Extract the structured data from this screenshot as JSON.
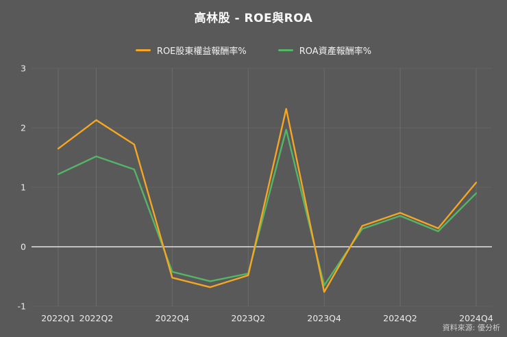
{
  "header": {
    "title": "高林股 - ROE與ROA"
  },
  "legend": [
    {
      "label": "ROE股東權益報酬率%",
      "color": "#f5a623"
    },
    {
      "label": "ROA資產報酬率%",
      "color": "#55b567"
    }
  ],
  "footer": {
    "source": "資料來源: 優分析"
  },
  "chart_data": {
    "type": "line",
    "title": "高林股 - ROE與ROA",
    "categories": [
      "2022Q1",
      "2022Q2",
      "2022Q3",
      "2022Q4",
      "2023Q1",
      "2023Q2",
      "2023Q3",
      "2023Q4",
      "2024Q1",
      "2024Q2",
      "2024Q3",
      "2024Q4"
    ],
    "x_tick_indices": [
      0,
      1,
      3,
      5,
      7,
      9,
      11
    ],
    "x_tick_labels": [
      "2022Q1",
      "2022Q2",
      "2022Q4",
      "2023Q2",
      "2023Q4",
      "2024Q2",
      "2024Q4"
    ],
    "series": [
      {
        "name": "ROE股東權益報酬率%",
        "color": "#f5a623",
        "values": [
          1.65,
          2.13,
          1.72,
          -0.52,
          -0.68,
          -0.48,
          2.32,
          -0.76,
          0.35,
          0.57,
          0.31,
          1.08
        ]
      },
      {
        "name": "ROA資產報酬率%",
        "color": "#55b567",
        "values": [
          1.22,
          1.52,
          1.3,
          -0.42,
          -0.58,
          -0.45,
          1.97,
          -0.65,
          0.3,
          0.52,
          0.26,
          0.9
        ]
      }
    ],
    "ylim": [
      -1,
      3
    ],
    "y_ticks": [
      -1,
      0,
      1,
      2,
      3
    ],
    "xlabel": "",
    "ylabel": "",
    "grid": "faint vertical gridlines at labeled ticks; white zero baseline",
    "legend_position": "top-center",
    "background": "#595959"
  }
}
